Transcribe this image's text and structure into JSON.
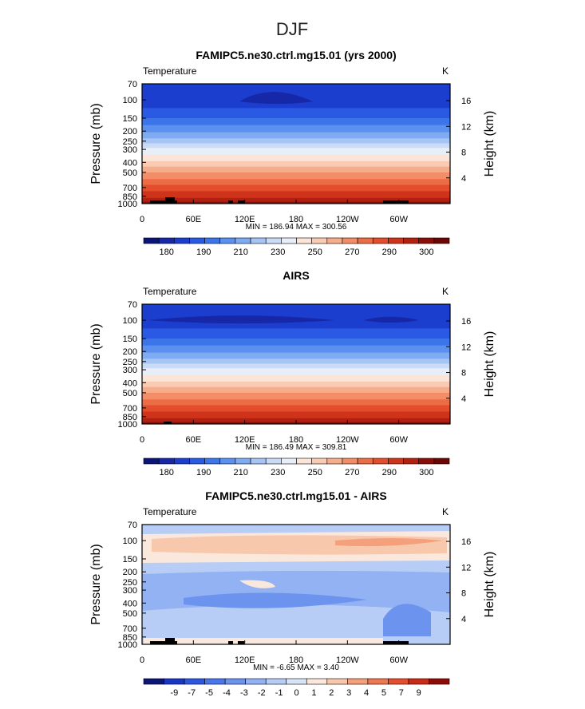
{
  "page_title": "DJF",
  "chart_data": [
    {
      "type": "heatmap",
      "title": "FAMIPC5.ne30.ctrl.mg15.01 (yrs 2000)",
      "left_label": "Temperature",
      "right_label": "K",
      "ylabel": "Pressure  (mb)",
      "ylabel_right": "Height  (km)",
      "yticks": [
        "70",
        "100",
        "150",
        "200",
        "250",
        "300",
        "400",
        "500",
        "700",
        "850",
        "1000"
      ],
      "yticks_right": [
        "16",
        "12",
        "8",
        "4"
      ],
      "xticks": [
        "0",
        "60E",
        "120E",
        "180",
        "120W",
        "60W"
      ],
      "stats": "MIN = 186.94   MAX = 300.56",
      "colorbar_labels": [
        "180",
        "190",
        "210",
        "230",
        "250",
        "270",
        "290",
        "300"
      ]
    },
    {
      "type": "heatmap",
      "title": "AIRS",
      "left_label": "Temperature",
      "right_label": "K",
      "ylabel": "Pressure  (mb)",
      "ylabel_right": "Height  (km)",
      "yticks": [
        "70",
        "100",
        "150",
        "200",
        "250",
        "300",
        "400",
        "500",
        "700",
        "850",
        "1000"
      ],
      "yticks_right": [
        "16",
        "12",
        "8",
        "4"
      ],
      "xticks": [
        "0",
        "60E",
        "120E",
        "180",
        "120W",
        "60W"
      ],
      "stats": "MIN = 186.49   MAX = 309.81",
      "colorbar_labels": [
        "180",
        "190",
        "210",
        "230",
        "250",
        "270",
        "290",
        "300"
      ]
    },
    {
      "type": "heatmap",
      "title": "FAMIPC5.ne30.ctrl.mg15.01 - AIRS",
      "left_label": "Temperature",
      "right_label": "K",
      "ylabel": "Pressure  (mb)",
      "ylabel_right": "Height  (km)",
      "yticks": [
        "70",
        "100",
        "150",
        "200",
        "250",
        "300",
        "400",
        "500",
        "700",
        "850",
        "1000"
      ],
      "yticks_right": [
        "16",
        "12",
        "8",
        "4"
      ],
      "xticks": [
        "0",
        "60E",
        "120E",
        "180",
        "120W",
        "60W"
      ],
      "stats": "MIN =   -6.65   MAX =    3.40",
      "colorbar_labels": [
        "-9",
        "-7",
        "-5",
        "-4",
        "-3",
        "-2",
        "-1",
        "0",
        "1",
        "2",
        "3",
        "4",
        "5",
        "7",
        "9"
      ]
    }
  ]
}
